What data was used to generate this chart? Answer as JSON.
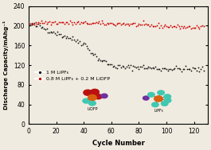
{
  "title": "",
  "xlabel": "Cycle Number",
  "ylabel": "Discharge Capacity/mAhg⁻¹",
  "xlim": [
    0,
    130
  ],
  "ylim": [
    0,
    240
  ],
  "yticks": [
    0,
    40,
    80,
    120,
    160,
    200,
    240
  ],
  "xticks": [
    0,
    20,
    40,
    60,
    80,
    100,
    120
  ],
  "background_color": "#f0ebe0",
  "legend1": "1 M LiPF₆",
  "legend2": "0.8 M LiPF₆ + 0.2 M LiDFP",
  "color_black": "#1a1a1a",
  "color_red": "#cc0000",
  "color_orange": "#d95f10",
  "color_cyan": "#40c8b0",
  "color_purple": "#7030a0",
  "color_dark_red": "#bb1111"
}
